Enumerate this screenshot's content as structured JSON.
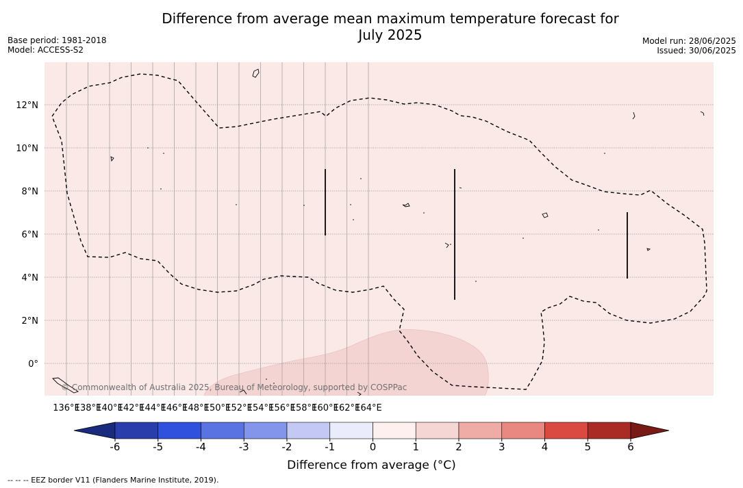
{
  "header": {
    "title_line1": "Difference from average mean maximum temperature forecast for",
    "title_line2": "July 2025",
    "base_period": "Base period: 1981-2018",
    "model": "Model: ACCESS-S2",
    "model_run": "Model run: 28/06/2025",
    "issued": "Issued: 30/06/2025"
  },
  "map": {
    "lon_labels": [
      "136°E",
      "138°E",
      "140°E",
      "142°E",
      "144°E",
      "146°E",
      "148°E",
      "150°E",
      "152°E",
      "154°E",
      "156°E",
      "158°E",
      "160°E",
      "162°E",
      "164°E"
    ],
    "lat_labels": [
      "12°N",
      "10°N",
      "8°N",
      "6°N",
      "4°N",
      "2°N",
      "0°"
    ],
    "copyright": "© Commonwealth of Australia 2025, Bureau of Meteorology, supported by COSPPac",
    "background_color": "#fbe9e8",
    "anomaly_color": "#f4d4d2"
  },
  "colorbar": {
    "label": "Difference from average (°C)",
    "ticks": [
      "-6",
      "-5",
      "-4",
      "-3",
      "-2",
      "-1",
      "0",
      "1",
      "2",
      "3",
      "4",
      "5",
      "6"
    ],
    "colors": [
      "#2a3eab",
      "#3050de",
      "#5a73e3",
      "#8395ea",
      "#c3c9f4",
      "#eaecfb",
      "#fdf0ef",
      "#f6d6d4",
      "#efaca6",
      "#e88880",
      "#db4a40",
      "#aa2b25"
    ],
    "under_color": "#1a2a7d",
    "over_color": "#7a1a16"
  },
  "footer": {
    "legend_text": "--  --  -- EEZ border V11 (Flanders Marine Institute, 2019)."
  }
}
